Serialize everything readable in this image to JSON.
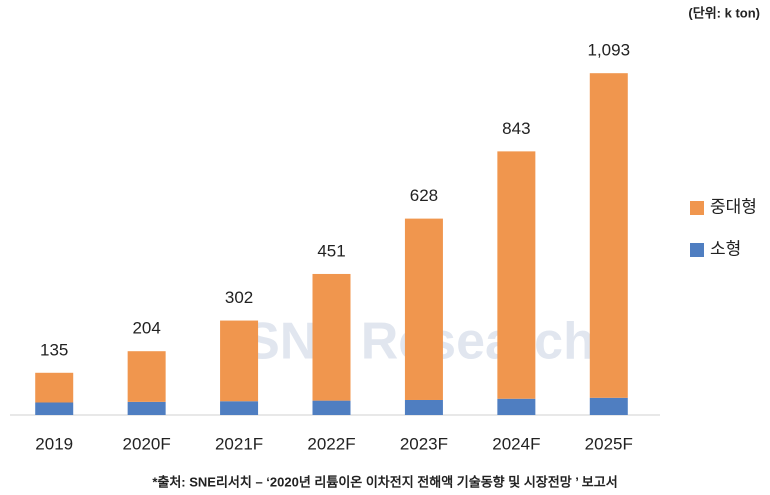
{
  "chart_data": {
    "type": "stacked_bar",
    "unit": "(단위: k ton)",
    "watermark": "SNe Research",
    "source": "*출처: SNE리서치 – ‘2020년 리튬이온 이차전지 전해액 기술동향 및 시장전망 ’ 보고서",
    "categories": [
      "2019",
      "2020F",
      "2021F",
      "2022F",
      "2023F",
      "2024F",
      "2025F"
    ],
    "series": [
      {
        "name": "소형",
        "color": "#4f7ec1",
        "values": [
          40,
          42,
          44,
          46,
          48,
          52,
          55
        ]
      },
      {
        "name": "중대형",
        "color": "#f0964e",
        "values": [
          95,
          162,
          258,
          405,
          580,
          791,
          1038
        ]
      }
    ],
    "totals": {
      "values": [
        135,
        204,
        302,
        451,
        628,
        843,
        1093
      ],
      "value_labels": [
        "135",
        "204",
        "302",
        "451",
        "628",
        "843",
        "1,093"
      ]
    },
    "ylim": [
      0,
      1100
    ]
  }
}
